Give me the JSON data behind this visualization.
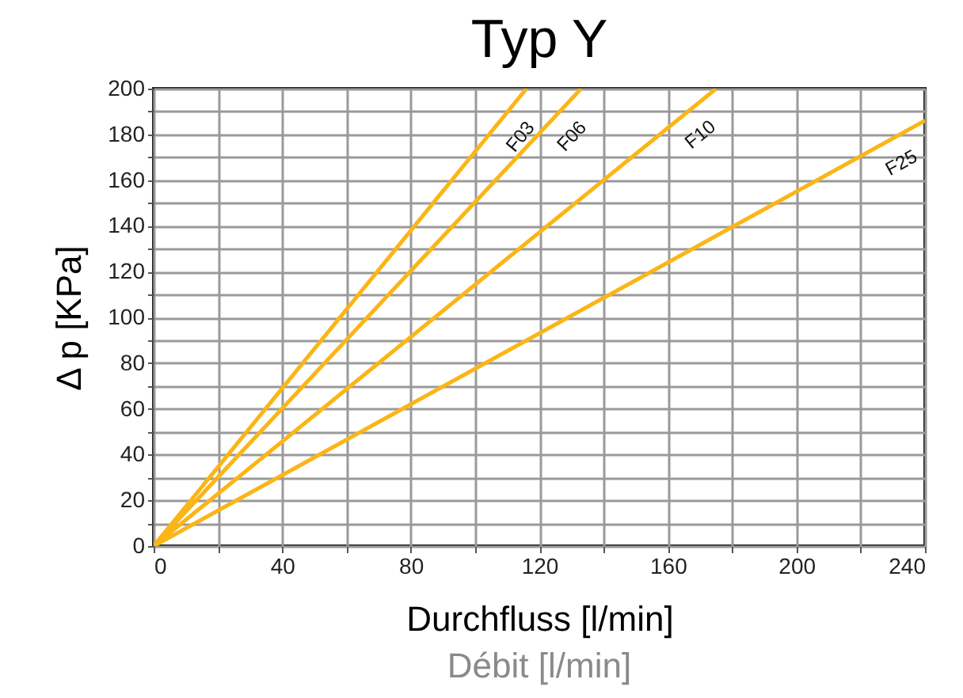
{
  "chart_data": {
    "type": "line",
    "title": "Typ Y",
    "xlabel": "Durchfluss  [l/min]",
    "ylabel": "Δ p  [KPa]",
    "annotations": [
      "Débit  [l/min]"
    ],
    "xlim": [
      0,
      240
    ],
    "ylim": [
      0,
      200
    ],
    "xticks": [
      0,
      {
        "value": 20,
        "label": null
      },
      40,
      {
        "value": 60,
        "label": null
      },
      80,
      {
        "value": 100,
        "label": null
      },
      120,
      {
        "value": 140,
        "label": null
      },
      160,
      {
        "value": 180,
        "label": null
      },
      200,
      {
        "value": 220,
        "label": null
      },
      240
    ],
    "yticks": [
      0,
      {
        "value": 10,
        "label": null
      },
      20,
      {
        "value": 30,
        "label": null
      },
      40,
      {
        "value": 50,
        "label": null
      },
      60,
      {
        "value": 70,
        "label": null
      },
      80,
      {
        "value": 90,
        "label": null
      },
      100,
      {
        "value": 110,
        "label": null
      },
      120,
      {
        "value": 130,
        "label": null
      },
      140,
      {
        "value": 150,
        "label": null
      },
      160,
      {
        "value": 170,
        "label": null
      },
      180,
      {
        "value": 190,
        "label": null
      },
      200
    ],
    "grid": true,
    "legend": false,
    "line_style": "solid",
    "marker": "none",
    "series": [
      {
        "name": "F03",
        "color": "#fbb516",
        "x": [
          0,
          116
        ],
        "values": [
          0,
          200
        ]
      },
      {
        "name": "F06",
        "color": "#fbb516",
        "x": [
          0,
          133
        ],
        "values": [
          0,
          200
        ]
      },
      {
        "name": "F10",
        "color": "#fbb516",
        "x": [
          0,
          175
        ],
        "values": [
          0,
          200
        ]
      },
      {
        "name": "F25",
        "color": "#fbb516",
        "x": [
          0,
          240
        ],
        "values": [
          0,
          186
        ]
      }
    ]
  }
}
